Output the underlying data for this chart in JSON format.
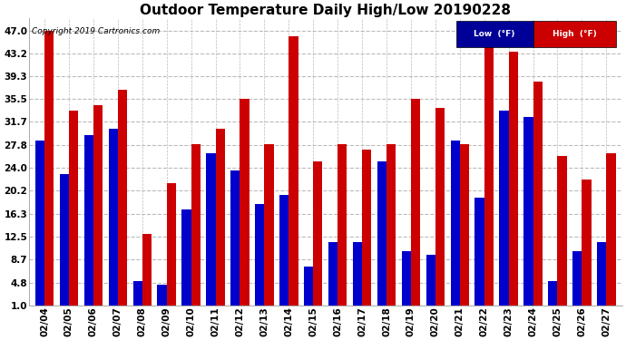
{
  "title": "Outdoor Temperature Daily High/Low 20190228",
  "copyright": "Copyright 2019 Cartronics.com",
  "dates": [
    "02/04",
    "02/05",
    "02/06",
    "02/07",
    "02/08",
    "02/09",
    "02/10",
    "02/11",
    "02/12",
    "02/13",
    "02/14",
    "02/15",
    "02/16",
    "02/17",
    "02/18",
    "02/19",
    "02/20",
    "02/21",
    "02/22",
    "02/23",
    "02/24",
    "02/25",
    "02/26",
    "02/27"
  ],
  "high": [
    47.0,
    33.5,
    34.5,
    37.0,
    13.0,
    21.5,
    28.0,
    30.5,
    35.5,
    28.0,
    46.0,
    25.0,
    28.0,
    27.0,
    28.0,
    35.5,
    34.0,
    28.0,
    44.5,
    43.5,
    38.5,
    26.0,
    22.0,
    26.5
  ],
  "low": [
    28.5,
    23.0,
    29.5,
    30.5,
    5.0,
    4.5,
    17.0,
    26.5,
    23.5,
    18.0,
    19.5,
    7.5,
    11.5,
    11.5,
    25.0,
    10.0,
    9.5,
    28.5,
    19.0,
    33.5,
    32.5,
    5.0,
    10.0,
    11.5
  ],
  "yticks": [
    1.0,
    4.8,
    8.7,
    12.5,
    16.3,
    20.2,
    24.0,
    27.8,
    31.7,
    35.5,
    39.3,
    43.2,
    47.0
  ],
  "ylim": [
    1.0,
    49.0
  ],
  "bar_width": 0.38,
  "low_color": "#0000cc",
  "high_color": "#cc0000",
  "bg_color": "#ffffff",
  "plot_bg_color": "#ffffff",
  "grid_color": "#bbbbbb",
  "title_fontsize": 11,
  "tick_fontsize": 7.5,
  "legend_low_color": "#000099",
  "legend_high_color": "#cc0000"
}
